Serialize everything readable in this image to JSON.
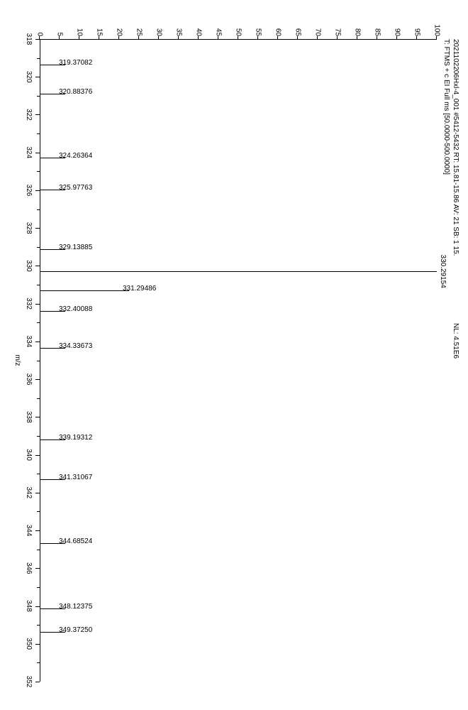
{
  "header": {
    "line1_a": "2021102206Hxl-4_001 #5412-5432   RT: 15.81-15.86   AV: 21   SB: 1 15.",
    "line1_b": "NL: 4.51E6",
    "line2": "T: FTMS + c EI Full ms [50.0000-500.0000]"
  },
  "chart": {
    "type": "mass-spectrum",
    "background_color": "#ffffff",
    "axis_color": "#000000",
    "text_color": "#000000",
    "tick_fontsize": 10,
    "label_fontsize": 10,
    "xlabel": "m/z",
    "xlim": [
      318.0,
      352.0
    ],
    "ylim": [
      0,
      100
    ],
    "ytick_step": 5,
    "xtick_major_step": 2,
    "xtick_minor_step": 1,
    "line_color": "#000000",
    "line_width": 1,
    "peaks": [
      {
        "mz": 330.29154,
        "intensity": 100.0,
        "label": "330.29154",
        "label_rot": false
      },
      {
        "mz": 331.29486,
        "intensity": 22.5,
        "label": "331.29486",
        "label_rot": true
      },
      {
        "mz": 319.37082,
        "intensity": 0.7,
        "label": "319.37082",
        "label_rot": true
      },
      {
        "mz": 320.88376,
        "intensity": 0.5,
        "label": "320.88376",
        "label_rot": true
      },
      {
        "mz": 324.26364,
        "intensity": 0.5,
        "label": "324.26364",
        "label_rot": true
      },
      {
        "mz": 325.97763,
        "intensity": 0.6,
        "label": "325.97763",
        "label_rot": true
      },
      {
        "mz": 329.13885,
        "intensity": 0.5,
        "label": "329.13885",
        "label_rot": true
      },
      {
        "mz": 332.40088,
        "intensity": 2.5,
        "label": "332.40088",
        "label_rot": true
      },
      {
        "mz": 334.33673,
        "intensity": 0.6,
        "label": "334.33673",
        "label_rot": true
      },
      {
        "mz": 339.19312,
        "intensity": 0.5,
        "label": "339.19312",
        "label_rot": true
      },
      {
        "mz": 341.31067,
        "intensity": 0.5,
        "label": "341.31067",
        "label_rot": true
      },
      {
        "mz": 344.68524,
        "intensity": 0.6,
        "label": "344.68524",
        "label_rot": true
      },
      {
        "mz": 348.12375,
        "intensity": 0.5,
        "label": "348.12375",
        "label_rot": true
      },
      {
        "mz": 349.3725,
        "intensity": 0.7,
        "label": "349.37250",
        "label_rot": true
      }
    ]
  }
}
